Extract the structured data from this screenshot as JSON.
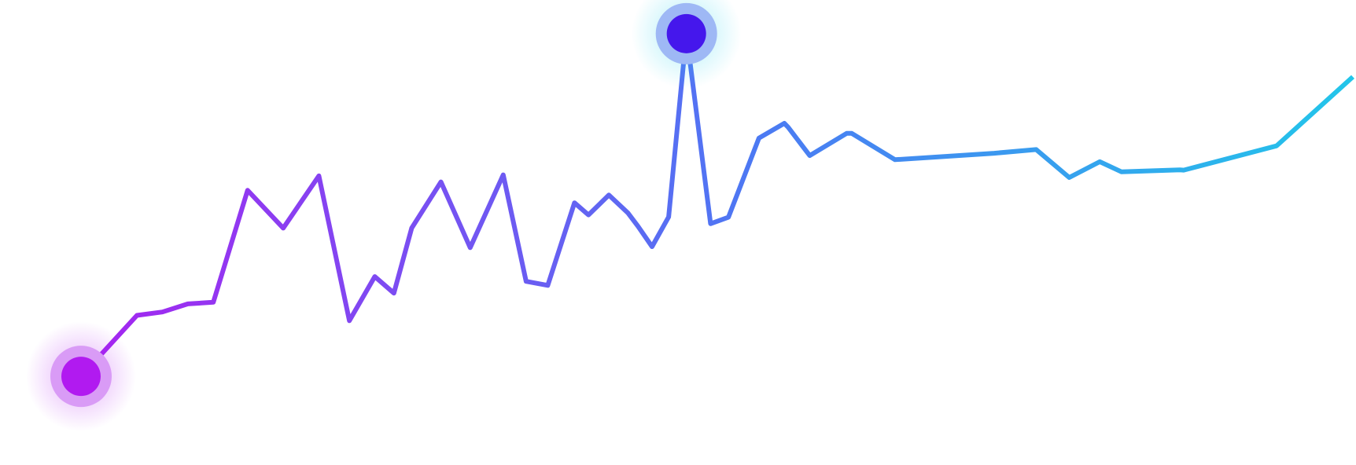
{
  "chart_data": {
    "type": "line",
    "title": "",
    "xlabel": "",
    "ylabel": "",
    "grid": false,
    "legend": "none",
    "axes_visible": false,
    "xlim": [
      0,
      100
    ],
    "ylim": [
      0,
      100
    ],
    "series": [
      {
        "x": [
          0,
          4.4,
          6.4,
          8.4,
          10.4,
          13.1,
          15.9,
          18.7,
          21.1,
          23.1,
          24.6,
          26.0,
          28.3,
          30.6,
          33.2,
          35.0,
          36.7,
          38.8,
          39.9,
          41.5,
          43.0,
          43.8,
          44.9,
          46.2,
          47.6,
          49.5,
          50.9,
          53.3,
          55.3,
          55.6,
          57.3,
          60.2,
          60.6,
          64.0,
          71.8,
          75.1,
          77.7,
          80.1,
          81.8,
          86.4,
          86.7,
          94.0,
          100
        ],
        "y": [
          2.3,
          20.4,
          21.4,
          23.8,
          24.3,
          57.5,
          46.3,
          61.8,
          18.8,
          31.9,
          27.0,
          46.3,
          60.0,
          40.5,
          62.1,
          30.5,
          29.3,
          53.8,
          50.2,
          56.1,
          50.8,
          46.8,
          40.8,
          49.6,
          104.0,
          47.6,
          49.5,
          73.0,
          77.4,
          76.2,
          67.8,
          74.4,
          74.4,
          66.6,
          68.5,
          69.6,
          61.3,
          66.0,
          63.0,
          63.6,
          63.5,
          70.7,
          91.2
        ],
        "highlight_points": [
          0,
          24
        ],
        "colors": {
          "start": "#b11af0",
          "mid": "#4d78f3",
          "end": "#22c6ea",
          "point_start_fill": "#b11af0",
          "point_start_halo": "#d99bf6",
          "point_peak_fill": "#4517ec",
          "point_peak_halo": "#9eb8f5"
        }
      }
    ]
  }
}
